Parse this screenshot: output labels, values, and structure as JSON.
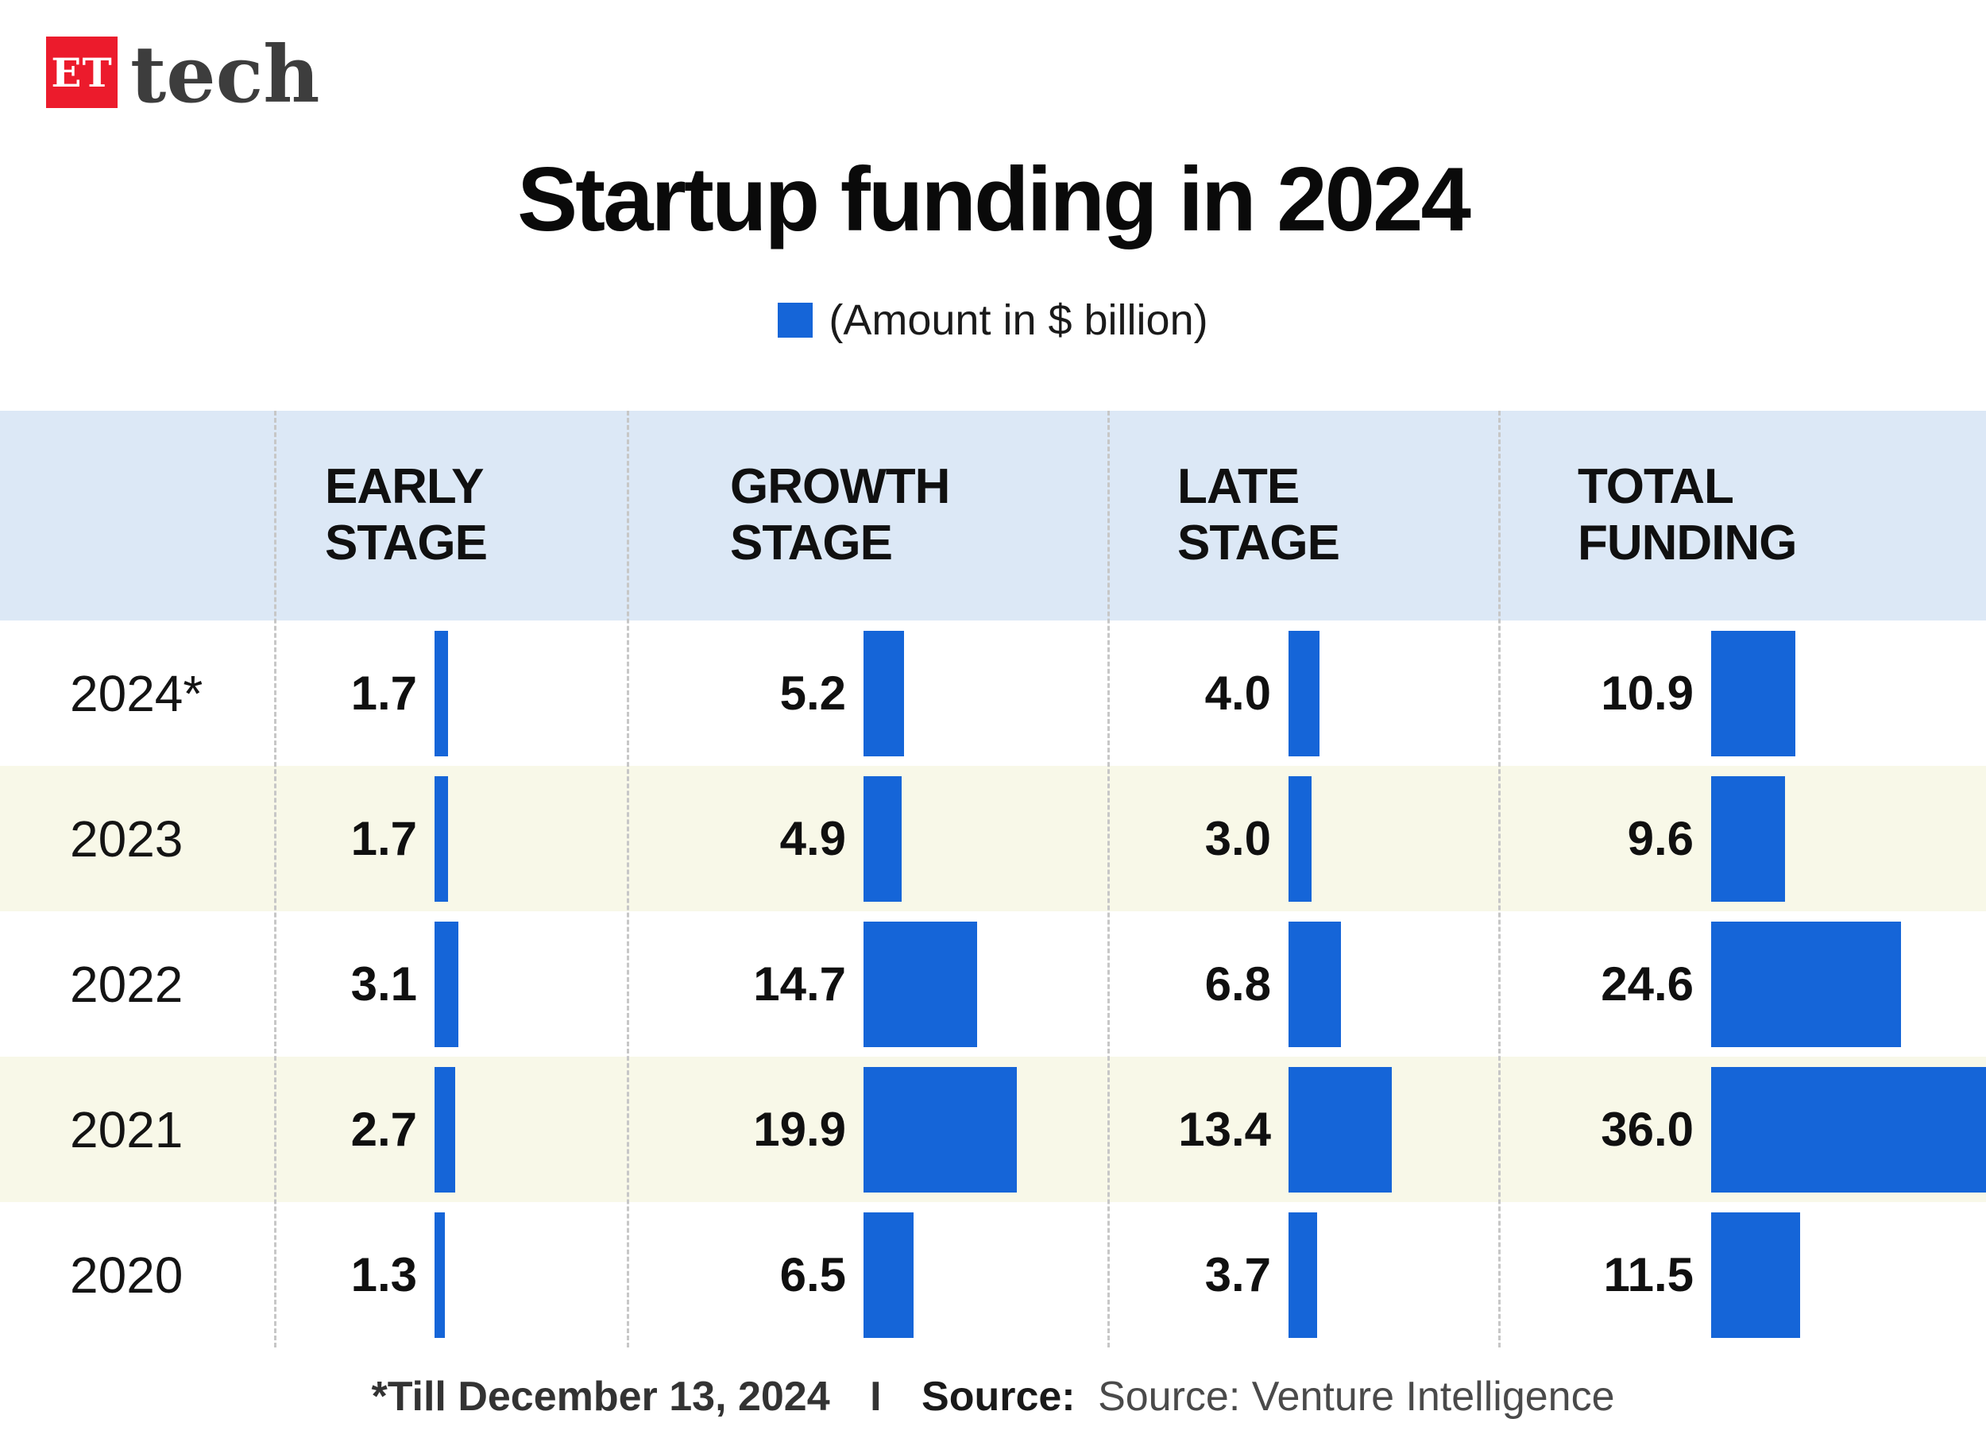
{
  "brand": {
    "logo_prefix": "ET",
    "logo_suffix": "tech"
  },
  "title": "Startup funding in 2024",
  "legend_label": "(Amount in $ billion)",
  "colors": {
    "bar": "#1565d8",
    "logo_red": "#ec1b2c",
    "header_bg": "#dce8f6",
    "row_stripe": "#f8f8e8"
  },
  "chart_data": {
    "type": "bar",
    "title": "Startup funding in 2024",
    "unit": "$ billion",
    "categories": [
      "2024*",
      "2023",
      "2022",
      "2021",
      "2020"
    ],
    "series": [
      {
        "name": "EARLY STAGE",
        "values": [
          1.7,
          1.7,
          3.1,
          2.7,
          1.3
        ]
      },
      {
        "name": "GROWTH STAGE",
        "values": [
          5.2,
          4.9,
          14.7,
          19.9,
          6.5
        ]
      },
      {
        "name": "LATE STAGE",
        "values": [
          4.0,
          3.0,
          6.8,
          13.4,
          3.7
        ]
      },
      {
        "name": "TOTAL FUNDING",
        "values": [
          10.9,
          9.6,
          24.6,
          36.0,
          11.5
        ]
      }
    ],
    "max_value": 36.0,
    "value_format": "one_decimal",
    "legend_position": "top-center",
    "grid": "dashed-column-separators"
  },
  "footer": {
    "note": "*Till December 13, 2024",
    "separator": "I",
    "source_label": "Source:",
    "source_value": "Source: Venture Intelligence"
  }
}
